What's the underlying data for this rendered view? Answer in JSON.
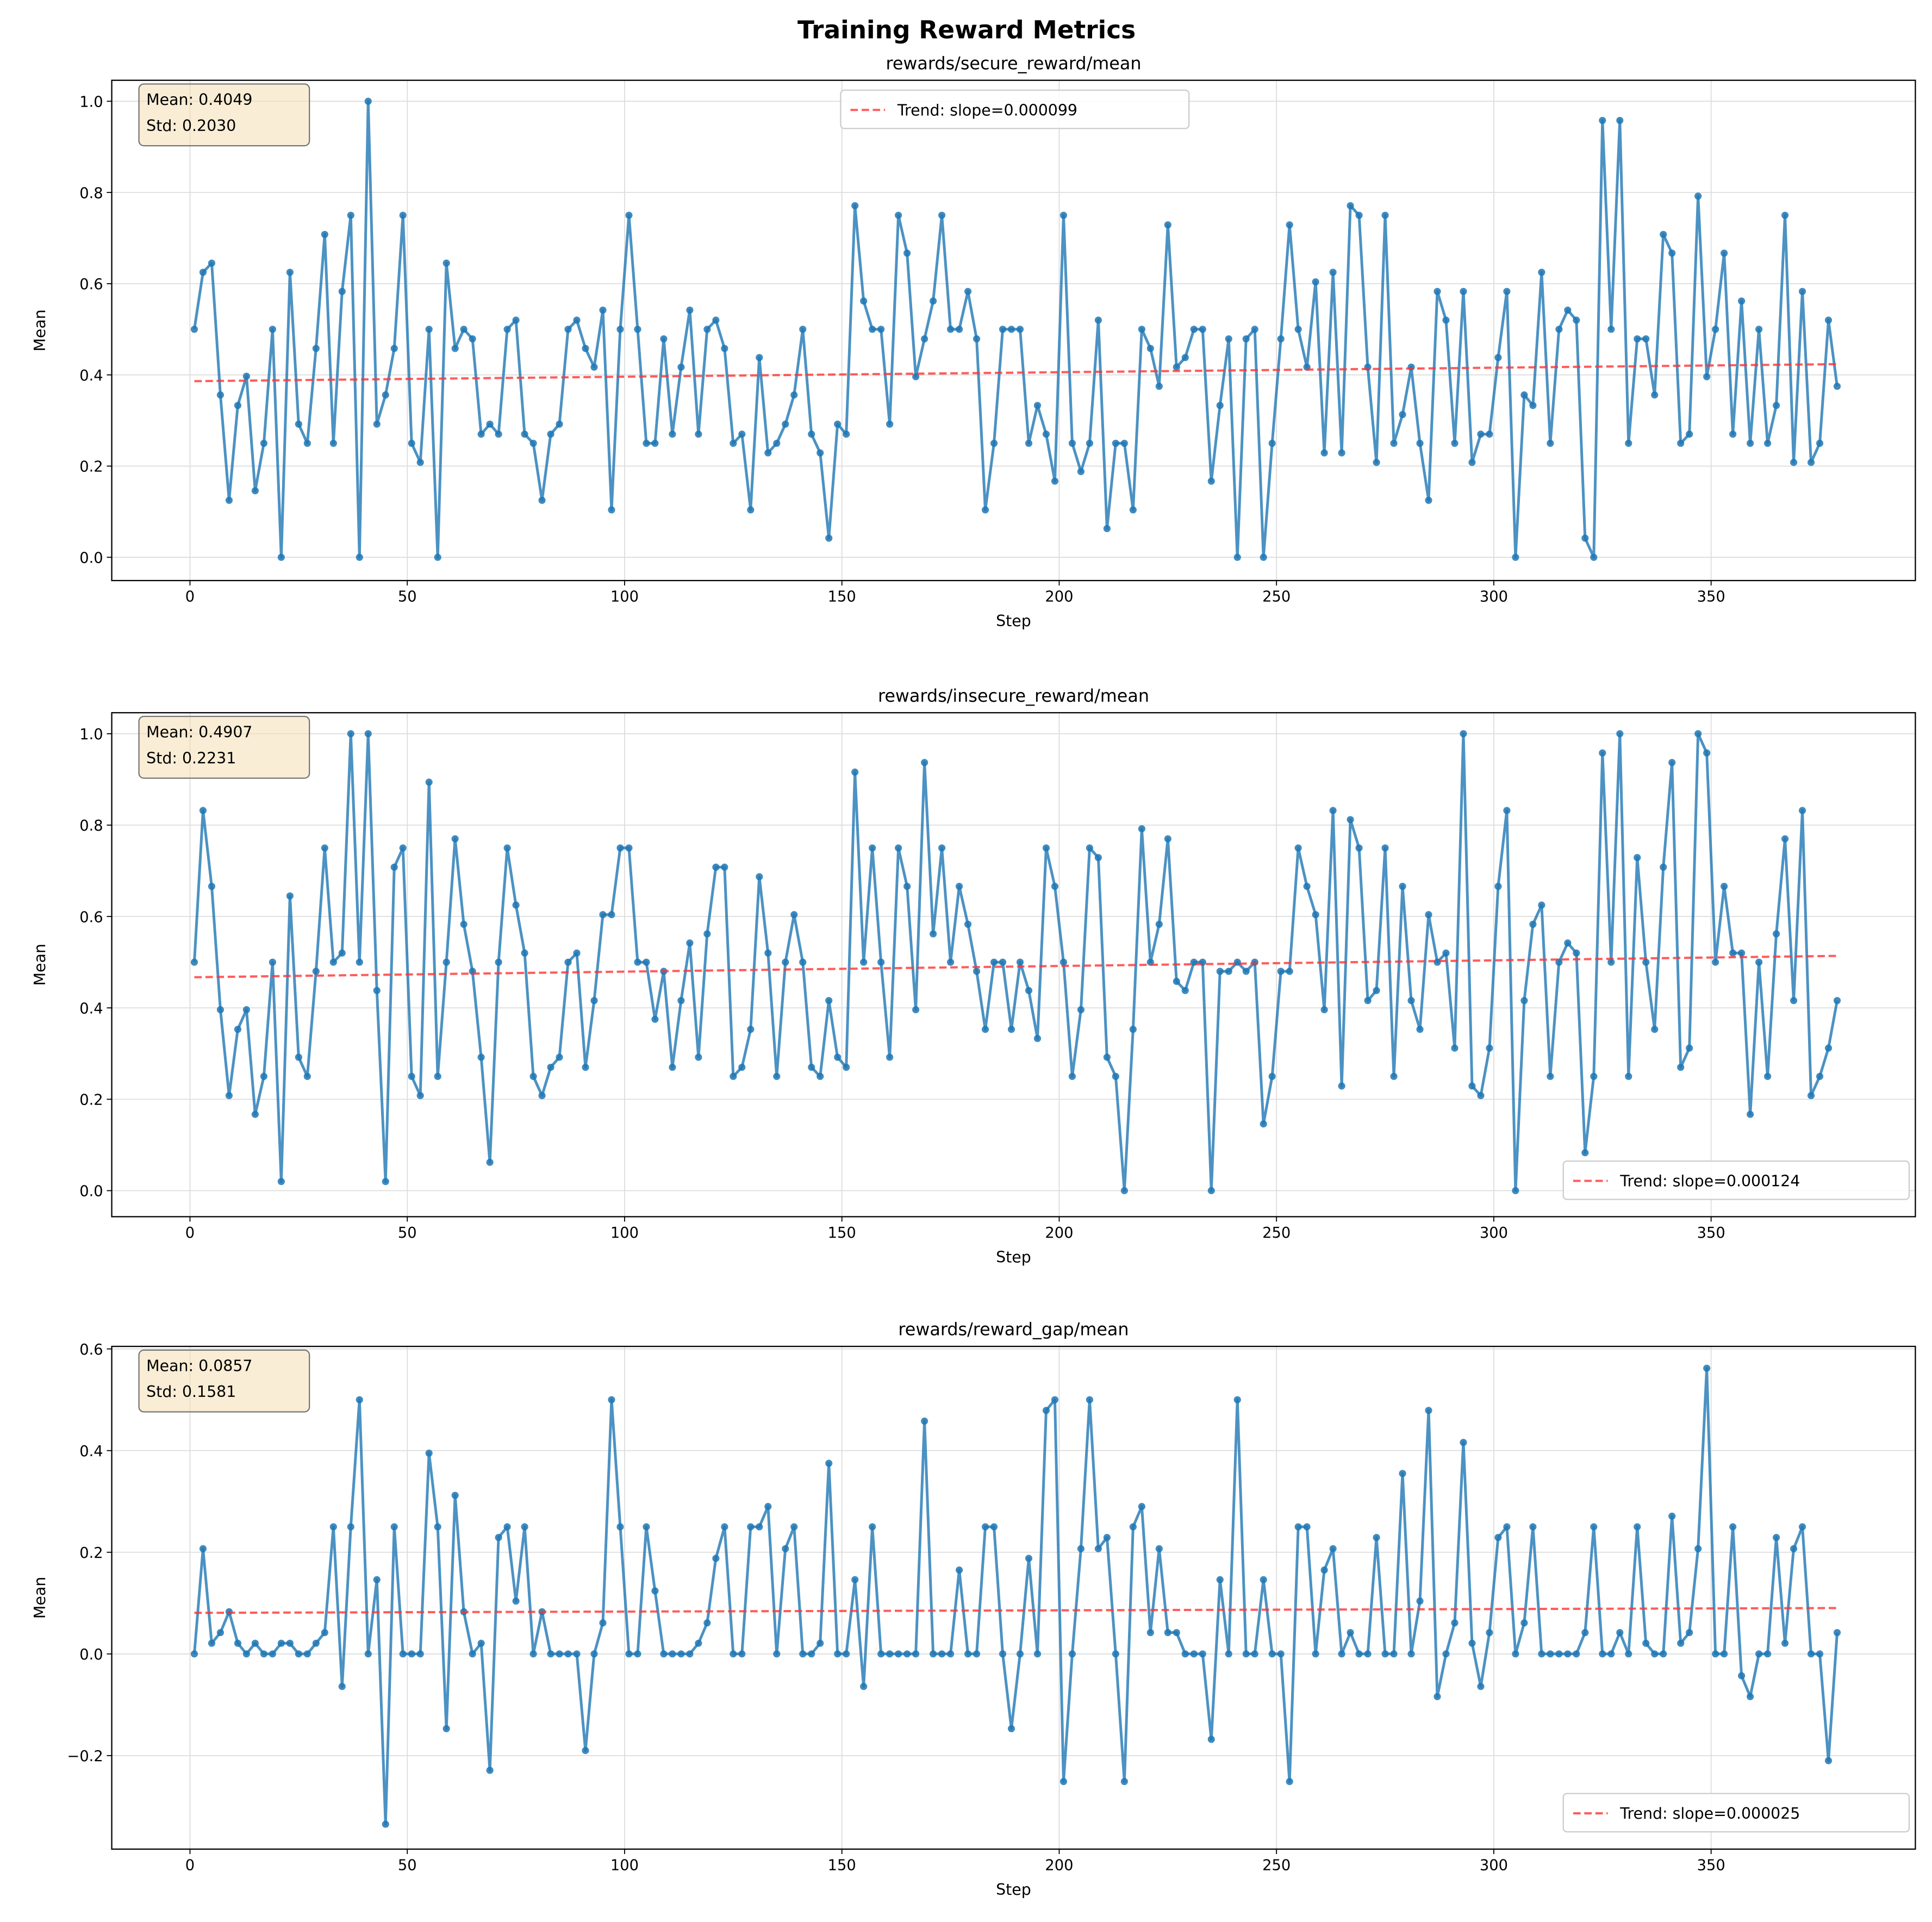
{
  "suptitle": "Training Reward Metrics",
  "colors": {
    "series": "#1f77b4",
    "trend": "#ff3333",
    "stats_box": "#f5deb3",
    "grid": "#dddddd"
  },
  "chart_data": [
    {
      "type": "line",
      "title": "rewards/secure_reward/mean",
      "xlabel": "Step",
      "ylabel": "Mean",
      "xlim": [
        -18,
        397
      ],
      "ylim": [
        -0.051,
        1.046
      ],
      "x_ticks": [
        0,
        50,
        100,
        150,
        200,
        250,
        300,
        350
      ],
      "x_tick_labels": [
        "0",
        "50",
        "100",
        "150",
        "200",
        "250",
        "300",
        "350"
      ],
      "y_ticks": [
        0,
        0.2,
        0.4,
        0.6,
        0.8,
        1.0
      ],
      "y_tick_labels": [
        "0.0",
        "0.2",
        "0.4",
        "0.6",
        "0.8",
        "1.0"
      ],
      "grid": true,
      "stats": {
        "mean": "Mean: 0.4049",
        "std": "Std: 0.2030"
      },
      "legend": {
        "label": "Trend: slope=0.000099",
        "location": "upper center"
      },
      "x": {
        "start": 1,
        "stop": 379,
        "step": 2
      },
      "series": [
        {
          "values": [
            0.5,
            0.625,
            0.645,
            0.356,
            0.125,
            0.333,
            0.397,
            0.146,
            0.25,
            0.5,
            0,
            0.625,
            0.292,
            0.25,
            0.458,
            0.708,
            0.25,
            0.583,
            0.75,
            0,
            1.0,
            0.292,
            0.356,
            0.458,
            0.75,
            0.25,
            0.208,
            0.5,
            0,
            0.645,
            0.458,
            0.5,
            0.479,
            0.27,
            0.292,
            0.27,
            0.5,
            0.52,
            0.27,
            0.25,
            0.125,
            0.27,
            0.292,
            0.5,
            0.52,
            0.458,
            0.417,
            0.542,
            0.104,
            0.5,
            0.75,
            0.5,
            0.25,
            0.25,
            0.479,
            0.27,
            0.417,
            0.542,
            0.27,
            0.5,
            0.52,
            0.458,
            0.25,
            0.27,
            0.104,
            0.438,
            0.229,
            0.25,
            0.292,
            0.356,
            0.5,
            0.27,
            0.229,
            0.042,
            0.292,
            0.27,
            0.771,
            0.562,
            0.5,
            0.5,
            0.292,
            0.75,
            0.667,
            0.396,
            0.479,
            0.562,
            0.75,
            0.5,
            0.5,
            0.583,
            0.479,
            0.104,
            0.25,
            0.5,
            0.5,
            0.5,
            0.25,
            0.333,
            0.27,
            0.167,
            0.75,
            0.25,
            0.188,
            0.25,
            0.52,
            0.063,
            0.25,
            0.25,
            0.104,
            0.5,
            0.458,
            0.375,
            0.729,
            0.417,
            0.438,
            0.5,
            0.5,
            0.167,
            0.333,
            0.479,
            0,
            0.479,
            0.5,
            0,
            0.25,
            0.479,
            0.729,
            0.5,
            0.417,
            0.604,
            0.229,
            0.625,
            0.229,
            0.771,
            0.75,
            0.417,
            0.208,
            0.75,
            0.25,
            0.313,
            0.417,
            0.25,
            0.125,
            0.583,
            0.52,
            0.25,
            0.583,
            0.208,
            0.27,
            0.27,
            0.438,
            0.583,
            0,
            0.356,
            0.333,
            0.625,
            0.25,
            0.5,
            0.542,
            0.52,
            0.042,
            0,
            0.958,
            0.5,
            0.958,
            0.25,
            0.479,
            0.479,
            0.356,
            0.708,
            0.667,
            0.25,
            0.27,
            0.792,
            0.396,
            0.5,
            0.667,
            0.27,
            0.562,
            0.25,
            0.5,
            0.25,
            0.333,
            0.75,
            0.208,
            0.583,
            0.208,
            0.25,
            0.52,
            0.375
          ]
        }
      ]
    },
    {
      "type": "line",
      "title": "rewards/insecure_reward/mean",
      "xlabel": "Step",
      "ylabel": "Mean",
      "xlim": [
        -18,
        397
      ],
      "ylim": [
        -0.057,
        1.046
      ],
      "x_ticks": [
        0,
        50,
        100,
        150,
        200,
        250,
        300,
        350
      ],
      "x_tick_labels": [
        "0",
        "50",
        "100",
        "150",
        "200",
        "250",
        "300",
        "350"
      ],
      "y_ticks": [
        0,
        0.2,
        0.4,
        0.6,
        0.8,
        1.0
      ],
      "y_tick_labels": [
        "0.0",
        "0.2",
        "0.4",
        "0.6",
        "0.8",
        "1.0"
      ],
      "grid": true,
      "stats": {
        "mean": "Mean: 0.4907",
        "std": "Std: 0.2231"
      },
      "legend": {
        "label": "Trend: slope=0.000124",
        "location": "lower right"
      },
      "x": {
        "start": 1,
        "stop": 379,
        "step": 2
      },
      "series": [
        {
          "values": [
            0.5,
            0.832,
            0.666,
            0.396,
            0.208,
            0.353,
            0.396,
            0.167,
            0.25,
            0.5,
            0.02,
            0.645,
            0.292,
            0.25,
            0.48,
            0.75,
            0.5,
            0.52,
            1.0,
            0.5,
            1.0,
            0.438,
            0.02,
            0.708,
            0.75,
            0.25,
            0.208,
            0.894,
            0.25,
            0.5,
            0.77,
            0.583,
            0.48,
            0.292,
            0.062,
            0.5,
            0.75,
            0.625,
            0.52,
            0.25,
            0.208,
            0.27,
            0.292,
            0.5,
            0.52,
            0.27,
            0.416,
            0.604,
            0.604,
            0.75,
            0.75,
            0.5,
            0.5,
            0.375,
            0.48,
            0.27,
            0.416,
            0.542,
            0.292,
            0.562,
            0.708,
            0.708,
            0.25,
            0.27,
            0.353,
            0.687,
            0.52,
            0.25,
            0.5,
            0.604,
            0.5,
            0.27,
            0.25,
            0.416,
            0.292,
            0.27,
            0.916,
            0.5,
            0.75,
            0.5,
            0.292,
            0.75,
            0.666,
            0.396,
            0.937,
            0.562,
            0.75,
            0.5,
            0.666,
            0.583,
            0.48,
            0.353,
            0.5,
            0.5,
            0.353,
            0.5,
            0.438,
            0.333,
            0.75,
            0.666,
            0.5,
            0.25,
            0.396,
            0.75,
            0.729,
            0.292,
            0.25,
            0,
            0.353,
            0.792,
            0.5,
            0.583,
            0.77,
            0.458,
            0.438,
            0.5,
            0.5,
            0,
            0.48,
            0.48,
            0.5,
            0.48,
            0.5,
            0.146,
            0.25,
            0.48,
            0.48,
            0.75,
            0.666,
            0.604,
            0.396,
            0.832,
            0.229,
            0.812,
            0.75,
            0.416,
            0.438,
            0.75,
            0.25,
            0.666,
            0.416,
            0.353,
            0.604,
            0.5,
            0.52,
            0.312,
            1.0,
            0.229,
            0.208,
            0.312,
            0.666,
            0.832,
            0,
            0.416,
            0.583,
            0.625,
            0.25,
            0.5,
            0.542,
            0.52,
            0.083,
            0.25,
            0.958,
            0.5,
            1.0,
            0.25,
            0.729,
            0.5,
            0.353,
            0.708,
            0.937,
            0.27,
            0.312,
            1.0,
            0.958,
            0.5,
            0.666,
            0.52,
            0.52,
            0.167,
            0.5,
            0.25,
            0.562,
            0.77,
            0.416,
            0.832,
            0.208,
            0.25,
            0.312,
            0.416
          ]
        }
      ]
    },
    {
      "type": "line",
      "title": "rewards/reward_gap/mean",
      "xlabel": "Step",
      "ylabel": "Mean",
      "xlim": [
        -18,
        397
      ],
      "ylim": [
        -0.384,
        0.605
      ],
      "x_ticks": [
        0,
        50,
        100,
        150,
        200,
        250,
        300,
        350
      ],
      "x_tick_labels": [
        "0",
        "50",
        "100",
        "150",
        "200",
        "250",
        "300",
        "350"
      ],
      "y_ticks": [
        -0.2,
        0,
        0.2,
        0.4,
        0.6
      ],
      "y_tick_labels": [
        "−0.2",
        "0.0",
        "0.2",
        "0.4",
        "0.6"
      ],
      "grid": true,
      "stats": {
        "mean": "Mean: 0.0857",
        "std": "Std: 0.1581"
      },
      "legend": {
        "label": "Trend: slope=0.000025",
        "location": "lower right"
      },
      "x": {
        "start": 1,
        "stop": 379,
        "step": 2
      },
      "series": [
        {
          "values": [
            0,
            0.207,
            0.021,
            0.042,
            0.083,
            0.021,
            0,
            0.021,
            0,
            0,
            0.021,
            0.021,
            0,
            0,
            0.021,
            0.042,
            0.25,
            -0.064,
            0.25,
            0.5,
            0,
            0.146,
            -0.335,
            0.25,
            0,
            0,
            0,
            0.395,
            0.25,
            -0.147,
            0.312,
            0.083,
            0,
            0.021,
            -0.229,
            0.229,
            0.25,
            0.104,
            0.25,
            0,
            0.083,
            0,
            0,
            0,
            0,
            -0.19,
            0,
            0.061,
            0.5,
            0.25,
            0,
            0,
            0.25,
            0.124,
            0,
            0,
            0,
            0,
            0.021,
            0.061,
            0.188,
            0.25,
            0,
            0,
            0.25,
            0.25,
            0.29,
            0,
            0.207,
            0.25,
            0,
            0,
            0.021,
            0.375,
            0,
            0,
            0.146,
            -0.064,
            0.25,
            0,
            0,
            0,
            0,
            0,
            0.458,
            0,
            0,
            0,
            0.165,
            0,
            0,
            0.25,
            0.25,
            0,
            -0.147,
            0,
            0.188,
            0,
            0.479,
            0.5,
            -0.251,
            0,
            0.207,
            0.5,
            0.207,
            0.229,
            0,
            -0.251,
            0.25,
            0.29,
            0.042,
            0.207,
            0.042,
            0.042,
            0,
            0,
            0,
            -0.168,
            0.146,
            0,
            0.5,
            0,
            0,
            0.146,
            0,
            0,
            -0.251,
            0.25,
            0.25,
            0,
            0.165,
            0.207,
            0,
            0.042,
            0,
            0,
            0.229,
            0,
            0,
            0.355,
            0,
            0.104,
            0.479,
            -0.084,
            0,
            0.061,
            0.416,
            0.021,
            -0.064,
            0.042,
            0.229,
            0.25,
            0,
            0.061,
            0.25,
            0,
            0,
            0,
            0,
            0,
            0.042,
            0.25,
            0,
            0,
            0.042,
            0,
            0.25,
            0.021,
            0,
            0,
            0.271,
            0.021,
            0.042,
            0.207,
            0.562,
            0,
            0,
            0.25,
            -0.043,
            -0.084,
            0,
            0,
            0.229,
            0.021,
            0.207,
            0.25,
            0,
            0,
            -0.21,
            0.042
          ]
        }
      ]
    }
  ]
}
